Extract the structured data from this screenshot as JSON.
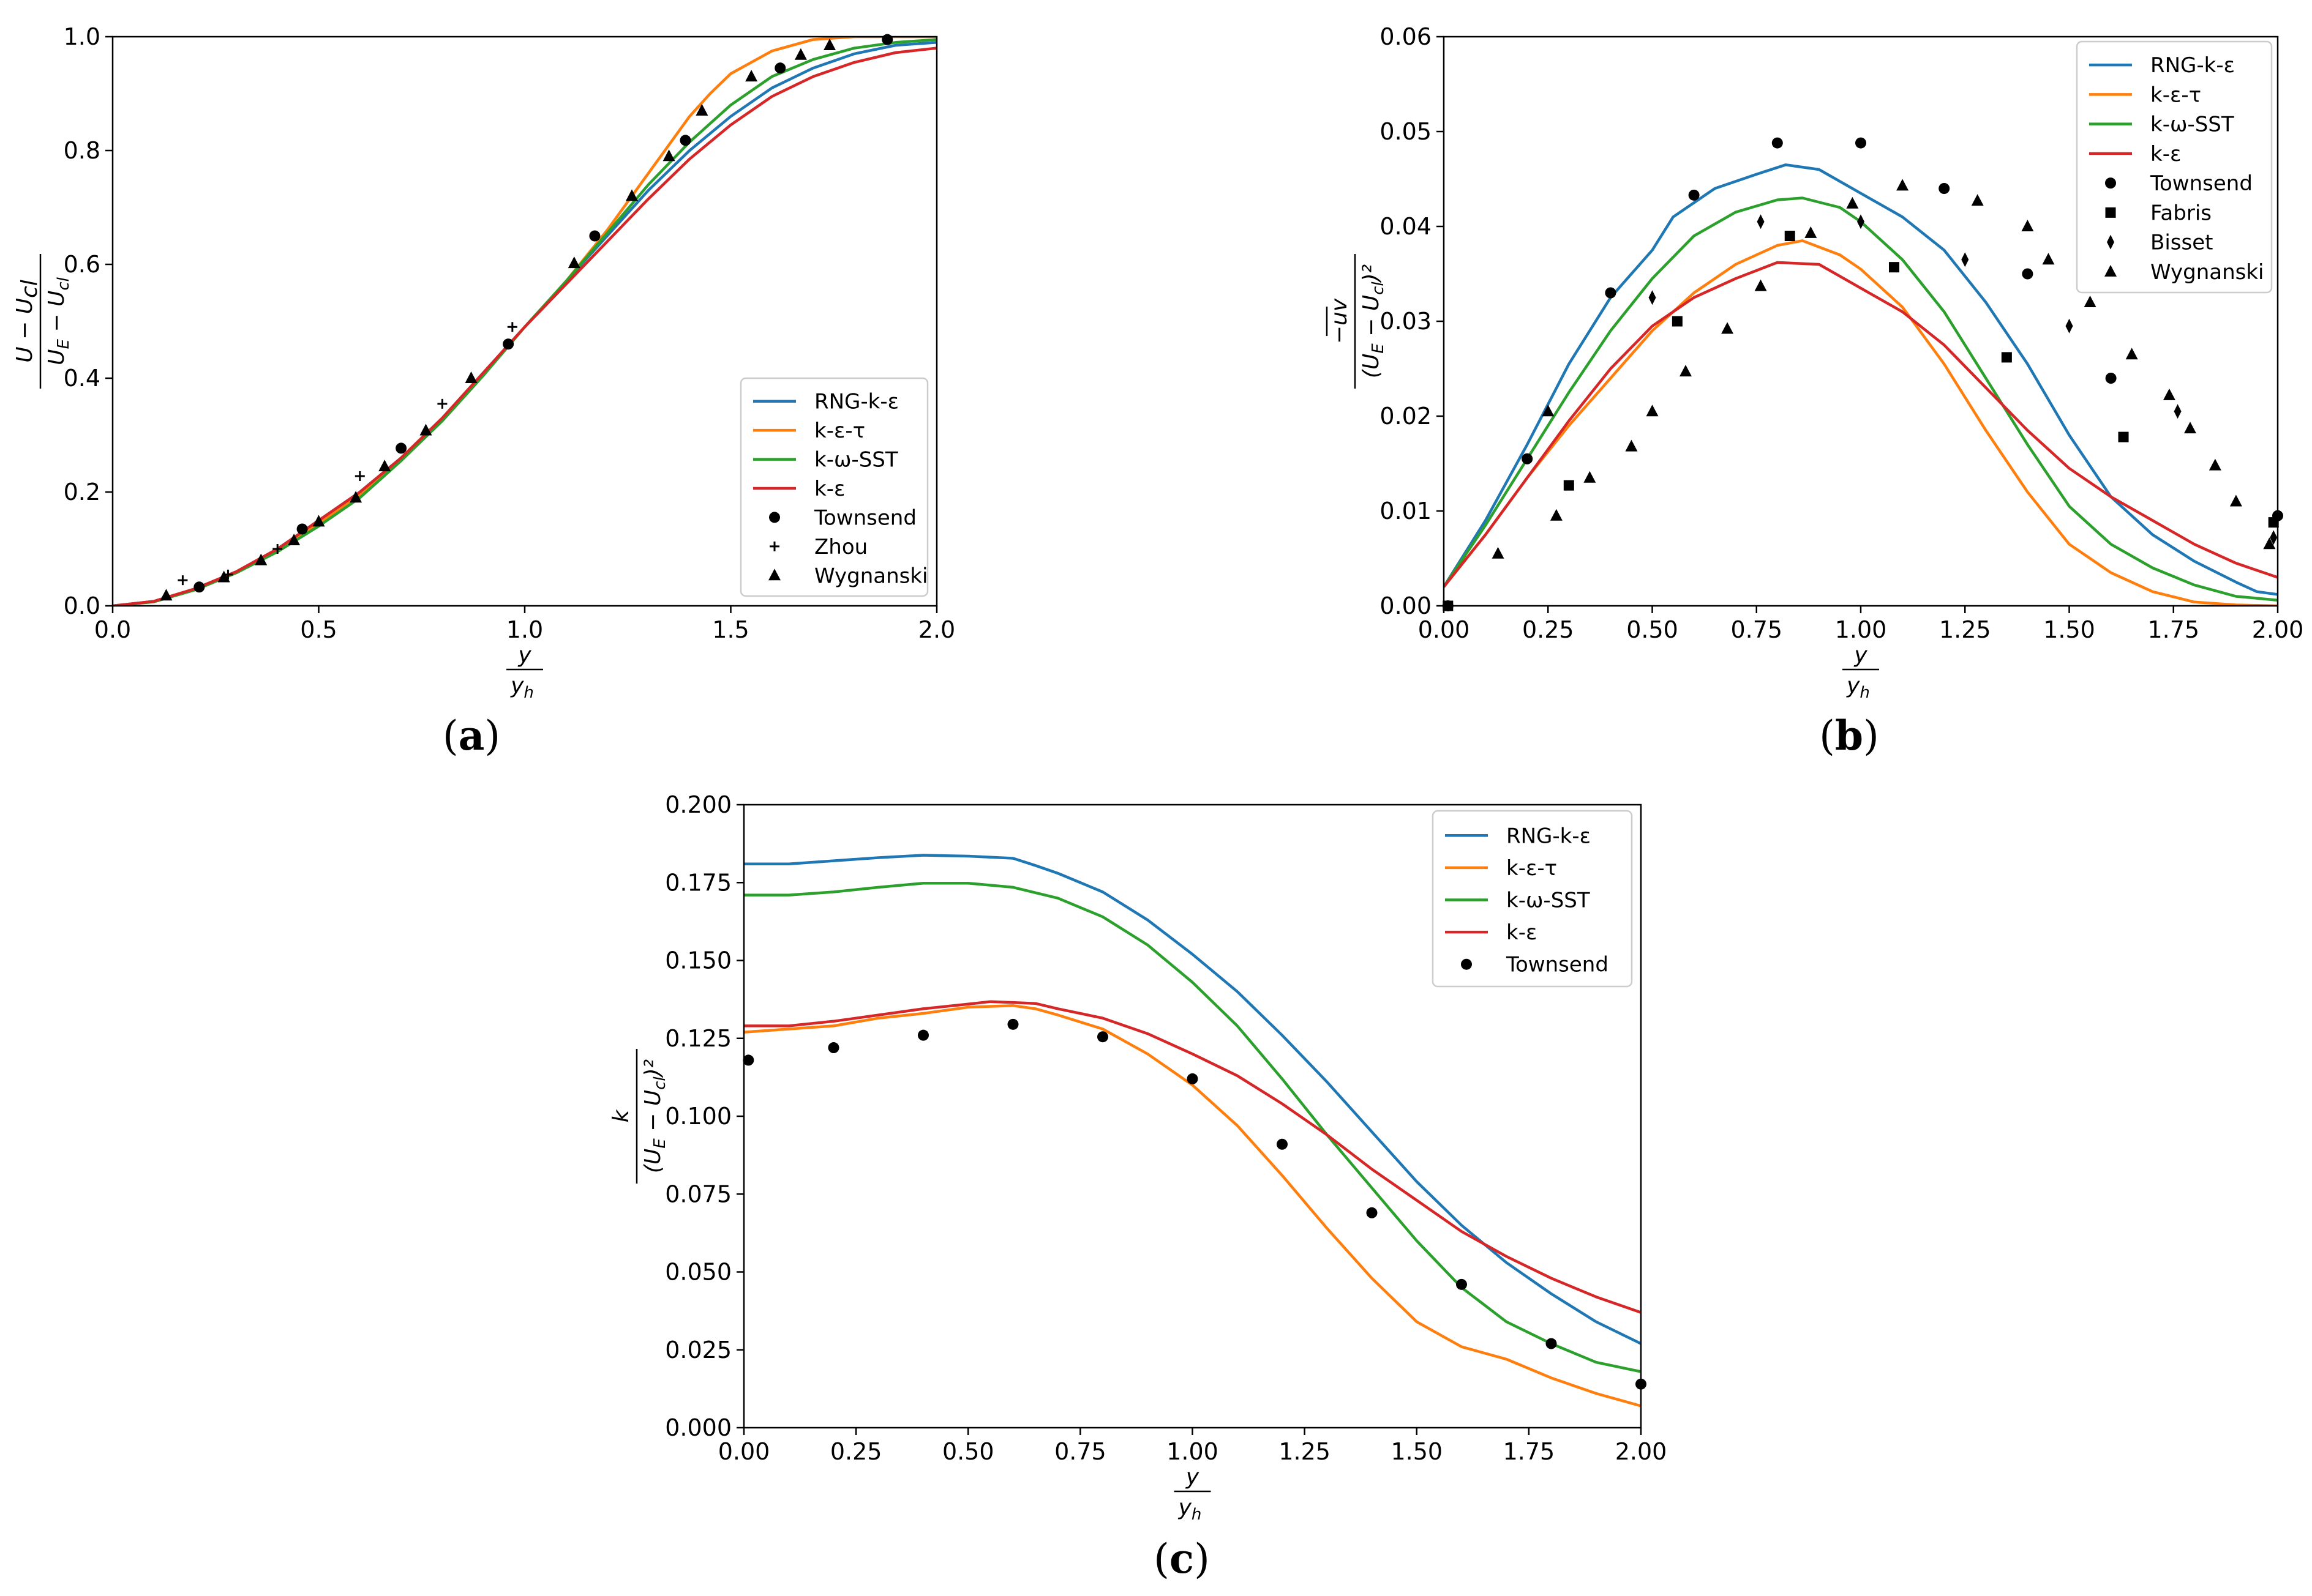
{
  "colors": {
    "RNG-k-ε": "#1f77b4",
    "k-ε-τ": "#ff7f0e",
    "k-ω-SST": "#2ca02c",
    "k-ε": "#d62728",
    "markers": "#000000"
  },
  "chart_data": [
    {
      "id": "a",
      "type": "line",
      "caption_letter": "a",
      "ylabel_num": "U − U",
      "ylabel_num_sub": "cl",
      "ylabel_den": "U",
      "ylabel_den_sub1": "E",
      "ylabel_den_mid": " − U",
      "ylabel_den_sub2": "cl",
      "xlabel_num": "y",
      "xlabel_den": "y",
      "xlabel_den_sub": "h",
      "xlim": [
        0,
        2
      ],
      "ylim": [
        0,
        1
      ],
      "xticks": [
        0,
        0.5,
        1,
        1.5,
        2
      ],
      "xtick_labels": [
        "0.0",
        "0.5",
        "1.0",
        "1.5",
        "2.0"
      ],
      "yticks": [
        0,
        0.2,
        0.4,
        0.6,
        0.8,
        1.0
      ],
      "ytick_labels": [
        "0.0",
        "0.2",
        "0.4",
        "0.6",
        "0.8",
        "1.0"
      ],
      "legend_position": "center-right",
      "series": [
        {
          "name": "RNG-k-ε",
          "kind": "line",
          "x": [
            0,
            0.1,
            0.2,
            0.3,
            0.4,
            0.5,
            0.6,
            0.7,
            0.8,
            0.9,
            1.0,
            1.1,
            1.2,
            1.3,
            1.4,
            1.5,
            1.6,
            1.7,
            1.8,
            1.9,
            2.0
          ],
          "y": [
            0,
            0.008,
            0.03,
            0.06,
            0.1,
            0.15,
            0.2,
            0.26,
            0.33,
            0.41,
            0.49,
            0.57,
            0.65,
            0.73,
            0.8,
            0.86,
            0.91,
            0.945,
            0.97,
            0.985,
            0.99
          ]
        },
        {
          "name": "k-ε-τ",
          "kind": "line",
          "x": [
            0,
            0.1,
            0.2,
            0.3,
            0.4,
            0.5,
            0.6,
            0.7,
            0.8,
            0.9,
            1.0,
            1.1,
            1.2,
            1.3,
            1.35,
            1.4,
            1.45,
            1.5,
            1.6,
            1.7,
            1.8,
            1.9,
            2.0
          ],
          "y": [
            0,
            0.008,
            0.03,
            0.06,
            0.1,
            0.145,
            0.195,
            0.26,
            0.33,
            0.41,
            0.49,
            0.57,
            0.66,
            0.76,
            0.81,
            0.86,
            0.9,
            0.935,
            0.975,
            0.995,
            1.0,
            1.0,
            1.0
          ]
        },
        {
          "name": "k-ω-SST",
          "kind": "line",
          "x": [
            0,
            0.1,
            0.2,
            0.3,
            0.4,
            0.5,
            0.6,
            0.7,
            0.8,
            0.9,
            1.0,
            1.1,
            1.2,
            1.3,
            1.4,
            1.5,
            1.6,
            1.7,
            1.8,
            1.9,
            2.0
          ],
          "y": [
            0,
            0.007,
            0.028,
            0.058,
            0.095,
            0.14,
            0.19,
            0.255,
            0.325,
            0.405,
            0.49,
            0.57,
            0.655,
            0.74,
            0.815,
            0.88,
            0.93,
            0.96,
            0.98,
            0.99,
            0.995
          ]
        },
        {
          "name": "k-ε",
          "kind": "line",
          "x": [
            0,
            0.1,
            0.2,
            0.3,
            0.4,
            0.5,
            0.6,
            0.7,
            0.8,
            0.9,
            1.0,
            1.1,
            1.2,
            1.3,
            1.4,
            1.5,
            1.6,
            1.7,
            1.8,
            1.9,
            2.0
          ],
          "y": [
            0,
            0.008,
            0.03,
            0.06,
            0.1,
            0.15,
            0.2,
            0.26,
            0.33,
            0.41,
            0.49,
            0.565,
            0.64,
            0.715,
            0.785,
            0.845,
            0.895,
            0.93,
            0.955,
            0.972,
            0.98
          ]
        },
        {
          "name": "Townsend",
          "kind": "circle",
          "x": [
            0.21,
            0.46,
            0.7,
            0.96,
            1.17,
            1.39,
            1.62,
            1.88
          ],
          "y": [
            0.033,
            0.135,
            0.277,
            0.46,
            0.65,
            0.818,
            0.945,
            0.995
          ]
        },
        {
          "name": "Zhou",
          "kind": "plus",
          "x": [
            0.17,
            0.28,
            0.4,
            0.6,
            0.8,
            0.97
          ],
          "y": [
            0.045,
            0.055,
            0.1,
            0.228,
            0.355,
            0.49
          ]
        },
        {
          "name": "Wygnanski",
          "kind": "triangle",
          "x": [
            0.13,
            0.27,
            0.36,
            0.44,
            0.5,
            0.59,
            0.66,
            0.76,
            0.87,
            1.12,
            1.26,
            1.35,
            1.43,
            1.55,
            1.67,
            1.74
          ],
          "y": [
            0.018,
            0.05,
            0.08,
            0.115,
            0.148,
            0.19,
            0.245,
            0.308,
            0.4,
            0.602,
            0.72,
            0.79,
            0.87,
            0.93,
            0.968,
            0.985
          ]
        }
      ]
    },
    {
      "id": "b",
      "type": "line",
      "caption_letter": "b",
      "ylabel_num": "−uv",
      "ylabel_den": "(U",
      "ylabel_den_sub1": "E",
      "ylabel_den_mid": " − U",
      "ylabel_den_sub2": "cl",
      "ylabel_den_end": ")²",
      "xlabel_num": "y",
      "xlabel_den": "y",
      "xlabel_den_sub": "h",
      "xlim": [
        0,
        2
      ],
      "ylim": [
        0,
        0.06
      ],
      "xticks": [
        0,
        0.25,
        0.5,
        0.75,
        1.0,
        1.25,
        1.5,
        1.75,
        2.0
      ],
      "xtick_labels": [
        "0.00",
        "0.25",
        "0.50",
        "0.75",
        "1.00",
        "1.25",
        "1.50",
        "1.75",
        "2.00"
      ],
      "yticks": [
        0,
        0.01,
        0.02,
        0.03,
        0.04,
        0.05,
        0.06
      ],
      "ytick_labels": [
        "0.00",
        "0.01",
        "0.02",
        "0.03",
        "0.04",
        "0.05",
        "0.06"
      ],
      "legend_position": "top-right",
      "series": [
        {
          "name": "RNG-k-ε",
          "kind": "line",
          "x": [
            0,
            0.1,
            0.2,
            0.3,
            0.4,
            0.5,
            0.55,
            0.65,
            0.75,
            0.82,
            0.9,
            1.0,
            1.1,
            1.2,
            1.3,
            1.4,
            1.5,
            1.6,
            1.7,
            1.8,
            1.9,
            1.95,
            2.0
          ],
          "y": [
            0.002,
            0.009,
            0.017,
            0.0255,
            0.0325,
            0.0375,
            0.041,
            0.044,
            0.0455,
            0.0465,
            0.046,
            0.0435,
            0.041,
            0.0375,
            0.032,
            0.0255,
            0.018,
            0.0115,
            0.0075,
            0.0047,
            0.0025,
            0.0015,
            0.0012
          ]
        },
        {
          "name": "k-ε-τ",
          "kind": "line",
          "x": [
            0,
            0.1,
            0.2,
            0.3,
            0.4,
            0.5,
            0.6,
            0.7,
            0.8,
            0.86,
            0.95,
            1.0,
            1.1,
            1.2,
            1.3,
            1.4,
            1.5,
            1.6,
            1.7,
            1.8,
            1.9,
            2.0
          ],
          "y": [
            0.002,
            0.0075,
            0.0135,
            0.019,
            0.024,
            0.029,
            0.033,
            0.036,
            0.038,
            0.0385,
            0.037,
            0.0355,
            0.0315,
            0.0255,
            0.0185,
            0.012,
            0.0065,
            0.0035,
            0.0015,
            0.0004,
            0.0001,
            0
          ]
        },
        {
          "name": "k-ω-SST",
          "kind": "line",
          "x": [
            0,
            0.1,
            0.2,
            0.3,
            0.4,
            0.5,
            0.6,
            0.7,
            0.8,
            0.86,
            0.95,
            1.0,
            1.1,
            1.2,
            1.3,
            1.4,
            1.5,
            1.6,
            1.7,
            1.8,
            1.9,
            2.0
          ],
          "y": [
            0.002,
            0.0085,
            0.0155,
            0.0225,
            0.029,
            0.0345,
            0.039,
            0.0415,
            0.0428,
            0.043,
            0.042,
            0.0405,
            0.0365,
            0.031,
            0.024,
            0.017,
            0.0105,
            0.0065,
            0.004,
            0.0022,
            0.001,
            0.0006
          ]
        },
        {
          "name": "k-ε",
          "kind": "line",
          "x": [
            0,
            0.1,
            0.2,
            0.3,
            0.4,
            0.5,
            0.6,
            0.7,
            0.8,
            0.9,
            1.0,
            1.1,
            1.2,
            1.3,
            1.4,
            1.5,
            1.6,
            1.7,
            1.8,
            1.9,
            2.0
          ],
          "y": [
            0.002,
            0.0075,
            0.0135,
            0.0195,
            0.025,
            0.0295,
            0.0325,
            0.0345,
            0.0362,
            0.036,
            0.0335,
            0.031,
            0.0275,
            0.023,
            0.0185,
            0.0145,
            0.0115,
            0.009,
            0.0065,
            0.0045,
            0.003
          ]
        },
        {
          "name": "Townsend",
          "kind": "circle",
          "x": [
            0.01,
            0.2,
            0.4,
            0.6,
            0.8,
            1.0,
            1.2,
            1.4,
            1.6,
            2.0
          ],
          "y": [
            0,
            0.0155,
            0.033,
            0.0433,
            0.0488,
            0.0488,
            0.044,
            0.035,
            0.024,
            0.0095
          ]
        },
        {
          "name": "Fabris",
          "kind": "square",
          "x": [
            0.01,
            0.3,
            0.56,
            0.83,
            1.08,
            1.35,
            1.63,
            1.99
          ],
          "y": [
            0,
            0.0127,
            0.03,
            0.039,
            0.0357,
            0.0262,
            0.0178,
            0.0088
          ]
        },
        {
          "name": "Bisset",
          "kind": "diamond",
          "x": [
            0.5,
            0.76,
            1.0,
            1.25,
            1.5,
            1.76,
            1.99
          ],
          "y": [
            0.0325,
            0.0405,
            0.0405,
            0.0365,
            0.0295,
            0.0205,
            0.0072
          ]
        },
        {
          "name": "Wygnanski",
          "kind": "triangle",
          "x": [
            0.13,
            0.25,
            0.27,
            0.35,
            0.45,
            0.5,
            0.58,
            0.68,
            0.76,
            0.88,
            0.98,
            1.1,
            1.28,
            1.4,
            1.45,
            1.55,
            1.65,
            1.74,
            1.79,
            1.85,
            1.9,
            1.98
          ],
          "y": [
            0.0055,
            0.0205,
            0.0095,
            0.0135,
            0.0168,
            0.0205,
            0.0247,
            0.0292,
            0.0337,
            0.0393,
            0.0424,
            0.0443,
            0.0427,
            0.04,
            0.0365,
            0.032,
            0.0265,
            0.0222,
            0.0187,
            0.0148,
            0.011,
            0.0065
          ]
        }
      ]
    },
    {
      "id": "c",
      "type": "line",
      "caption_letter": "c",
      "ylabel_num": "k",
      "ylabel_den": "(U",
      "ylabel_den_sub1": "E",
      "ylabel_den_mid": " − U",
      "ylabel_den_sub2": "cl",
      "ylabel_den_end": ")²",
      "xlabel_num": "y",
      "xlabel_den": "y",
      "xlabel_den_sub": "h",
      "xlim": [
        0,
        2
      ],
      "ylim": [
        0,
        0.2
      ],
      "xticks": [
        0,
        0.25,
        0.5,
        0.75,
        1.0,
        1.25,
        1.5,
        1.75,
        2.0
      ],
      "xtick_labels": [
        "0.00",
        "0.25",
        "0.50",
        "0.75",
        "1.00",
        "1.25",
        "1.50",
        "1.75",
        "2.00"
      ],
      "yticks": [
        0,
        0.025,
        0.05,
        0.075,
        0.1,
        0.125,
        0.15,
        0.175,
        0.2
      ],
      "ytick_labels": [
        "0.000",
        "0.025",
        "0.050",
        "0.075",
        "0.100",
        "0.125",
        "0.150",
        "0.175",
        "0.200"
      ],
      "legend_position": "top-right",
      "series": [
        {
          "name": "RNG-k-ε",
          "kind": "line",
          "x": [
            0,
            0.1,
            0.2,
            0.3,
            0.4,
            0.5,
            0.6,
            0.65,
            0.7,
            0.8,
            0.9,
            1.0,
            1.1,
            1.2,
            1.3,
            1.4,
            1.5,
            1.6,
            1.7,
            1.8,
            1.9,
            2.0
          ],
          "y": [
            0.181,
            0.181,
            0.182,
            0.183,
            0.1838,
            0.1835,
            0.1828,
            0.1805,
            0.178,
            0.172,
            0.163,
            0.152,
            0.14,
            0.126,
            0.111,
            0.095,
            0.079,
            0.065,
            0.053,
            0.043,
            0.034,
            0.027
          ]
        },
        {
          "name": "k-ε-τ",
          "kind": "line",
          "x": [
            0,
            0.1,
            0.2,
            0.3,
            0.4,
            0.5,
            0.6,
            0.65,
            0.7,
            0.8,
            0.9,
            1.0,
            1.1,
            1.2,
            1.3,
            1.4,
            1.5,
            1.6,
            1.7,
            1.8,
            1.9,
            2.0
          ],
          "y": [
            0.127,
            0.128,
            0.129,
            0.1315,
            0.133,
            0.135,
            0.1355,
            0.1345,
            0.1325,
            0.128,
            0.12,
            0.11,
            0.097,
            0.081,
            0.064,
            0.048,
            0.034,
            0.026,
            0.022,
            0.016,
            0.011,
            0.007
          ]
        },
        {
          "name": "k-ω-SST",
          "kind": "line",
          "x": [
            0,
            0.1,
            0.2,
            0.3,
            0.4,
            0.5,
            0.6,
            0.7,
            0.8,
            0.9,
            1.0,
            1.1,
            1.2,
            1.3,
            1.4,
            1.5,
            1.6,
            1.7,
            1.8,
            1.9,
            2.0
          ],
          "y": [
            0.171,
            0.171,
            0.172,
            0.1735,
            0.1748,
            0.1748,
            0.1735,
            0.17,
            0.164,
            0.155,
            0.143,
            0.129,
            0.112,
            0.094,
            0.077,
            0.06,
            0.045,
            0.034,
            0.027,
            0.021,
            0.018
          ]
        },
        {
          "name": "k-ε",
          "kind": "line",
          "x": [
            0,
            0.1,
            0.2,
            0.3,
            0.4,
            0.5,
            0.55,
            0.65,
            0.7,
            0.8,
            0.9,
            1.0,
            1.1,
            1.2,
            1.3,
            1.4,
            1.5,
            1.6,
            1.7,
            1.8,
            1.9,
            2.0
          ],
          "y": [
            0.129,
            0.129,
            0.1305,
            0.1325,
            0.1345,
            0.136,
            0.1368,
            0.1362,
            0.1345,
            0.1315,
            0.1265,
            0.12,
            0.113,
            0.104,
            0.094,
            0.083,
            0.073,
            0.063,
            0.055,
            0.048,
            0.042,
            0.037
          ]
        },
        {
          "name": "Townsend",
          "kind": "circle",
          "x": [
            0.01,
            0.2,
            0.4,
            0.6,
            0.8,
            1.0,
            1.2,
            1.4,
            1.6,
            1.8,
            2.0
          ],
          "y": [
            0.118,
            0.122,
            0.126,
            0.1295,
            0.1255,
            0.112,
            0.091,
            0.069,
            0.046,
            0.027,
            0.014
          ]
        }
      ]
    }
  ]
}
